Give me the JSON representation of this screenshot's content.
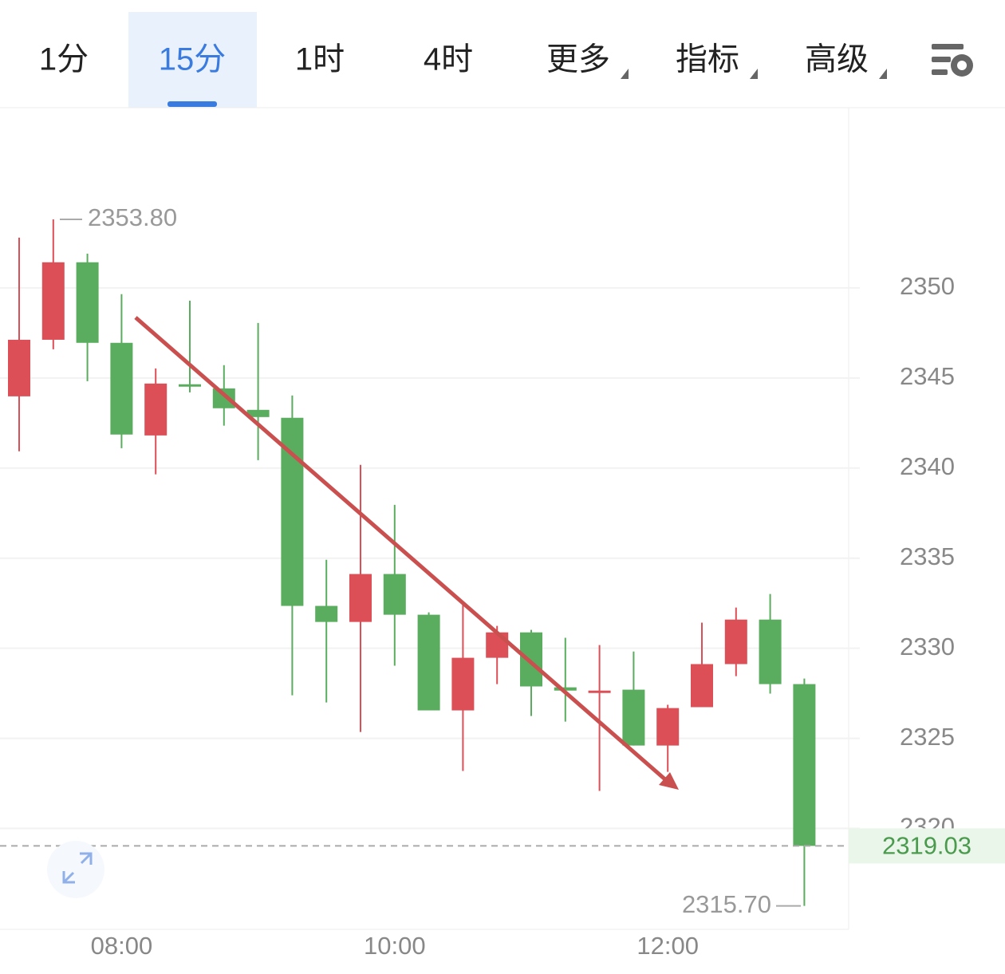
{
  "tabs": [
    "1分",
    "15分",
    "1时",
    "4时",
    "更多",
    "指标",
    "高级"
  ],
  "chart_data": {
    "type": "candlestick",
    "categories": [
      null,
      null,
      null,
      "08:00",
      null,
      null,
      null,
      null,
      null,
      null,
      null,
      "10:00",
      null,
      null,
      null,
      null,
      null,
      null,
      null,
      "12:00",
      null,
      null,
      null,
      null
    ],
    "open": [
      2343.98,
      2347.12,
      2351.42,
      2346.95,
      2341.81,
      2344.65,
      2344.42,
      2343.23,
      2342.79,
      2332.35,
      2331.46,
      2334.12,
      2331.86,
      2326.55,
      2329.47,
      2330.88,
      2327.83,
      2327.6,
      2327.7,
      2324.6,
      2326.73,
      2329.12,
      2331.59,
      2328.01
    ],
    "high": [
      2352.79,
      2353.8,
      2351.9,
      2349.65,
      2345.53,
      2349.29,
      2345.71,
      2348.05,
      2344.03,
      2334.91,
      2340.18,
      2337.96,
      2331.99,
      2332.48,
      2331.24,
      2331.02,
      2330.58,
      2330.18,
      2329.82,
      2326.86,
      2331.42,
      2332.26,
      2333.01,
      2328.32
    ],
    "low": [
      2340.93,
      2346.59,
      2344.82,
      2341.1,
      2339.65,
      2344.2,
      2342.35,
      2340.44,
      2327.39,
      2326.99,
      2325.35,
      2329.03,
      2326.55,
      2323.19,
      2328.01,
      2326.24,
      2325.93,
      2322.08,
      2324.6,
      2323.14,
      2326.73,
      2328.45,
      2327.48,
      2315.7
    ],
    "close": [
      2347.12,
      2351.42,
      2346.95,
      2341.86,
      2344.69,
      2344.55,
      2343.32,
      2342.83,
      2332.35,
      2331.46,
      2334.12,
      2331.86,
      2326.55,
      2329.47,
      2330.88,
      2327.88,
      2327.65,
      2327.65,
      2324.6,
      2326.68,
      2329.12,
      2331.59,
      2328.01,
      2319.03
    ],
    "up_color": "#dc4f57",
    "down_color": "#5aad5e",
    "ylim": [
      2314.4,
      2360
    ],
    "yticks": [
      2320,
      2325,
      2330,
      2335,
      2340,
      2345,
      2350
    ],
    "grid": true,
    "annotations": [
      {
        "value": 2353.8,
        "label": "2353.80"
      },
      {
        "value": 2315.7,
        "label": "2315.70"
      }
    ],
    "last_price": {
      "value": 2319.03,
      "label": "2319.03"
    }
  }
}
